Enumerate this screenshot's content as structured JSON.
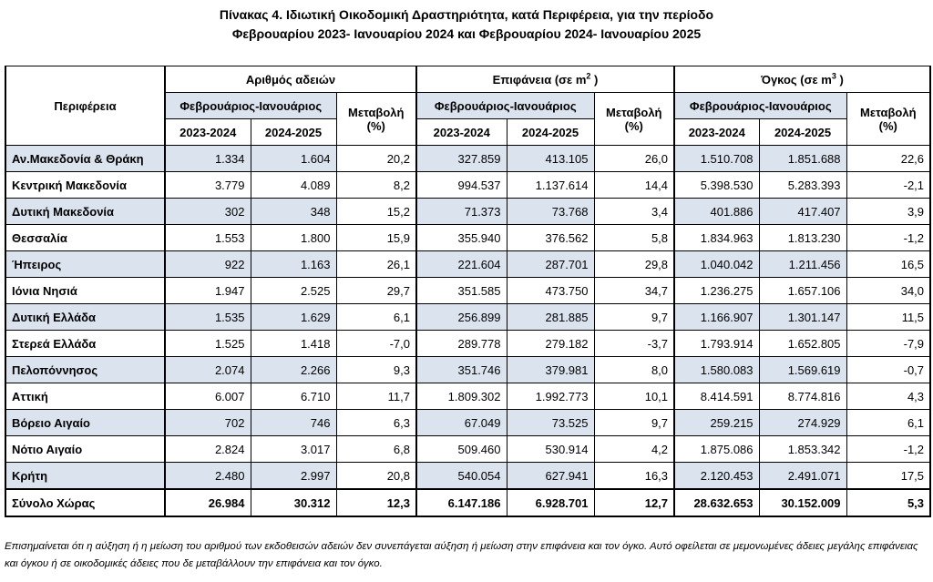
{
  "title": {
    "line1": "Πίνακας 4.  Ιδιωτική Οικοδομική Δραστηριότητα, κατά  Περιφέρεια, για την περίοδο",
    "line2": "Φεβρουαρίου 2023- Ιανουαρίου 2024 και Φεβρουαρίου 2024- Ιανουαρίου 2025"
  },
  "headers": {
    "region": "Περιφέρεια",
    "permits": "Αριθμός αδειών",
    "area": "Επιφάνεια (σε m",
    "area_sup": "2",
    "area_close": " )",
    "volume": "Όγκος (σε m",
    "volume_sup": "3",
    "volume_close": " )",
    "period": "Φεβρουάριος-Ιανουάριος",
    "change": "Μεταβολή",
    "percent": "(%)",
    "year1": "2023-2024",
    "year2": "2024-2025"
  },
  "rows": [
    {
      "region": "Αν.Μακεδονία & Θράκη",
      "p1": "1.334",
      "p2": "1.604",
      "pc": "20,2",
      "a1": "327.859",
      "a2": "413.105",
      "ac": "26,0",
      "v1": "1.510.708",
      "v2": "1.851.688",
      "vc": "22,6",
      "shaded": true
    },
    {
      "region": "Κεντρική Μακεδονία",
      "p1": "3.779",
      "p2": "4.089",
      "pc": "8,2",
      "a1": "994.537",
      "a2": "1.137.614",
      "ac": "14,4",
      "v1": "5.398.530",
      "v2": "5.283.393",
      "vc": "-2,1",
      "shaded": false
    },
    {
      "region": "Δυτική Μακεδονία",
      "p1": "302",
      "p2": "348",
      "pc": "15,2",
      "a1": "71.373",
      "a2": "73.768",
      "ac": "3,4",
      "v1": "401.886",
      "v2": "417.407",
      "vc": "3,9",
      "shaded": true
    },
    {
      "region": "Θεσσαλία",
      "p1": "1.553",
      "p2": "1.800",
      "pc": "15,9",
      "a1": "355.940",
      "a2": "376.562",
      "ac": "5,8",
      "v1": "1.834.963",
      "v2": "1.813.230",
      "vc": "-1,2",
      "shaded": false
    },
    {
      "region": "Ήπειρος",
      "p1": "922",
      "p2": "1.163",
      "pc": "26,1",
      "a1": "221.604",
      "a2": "287.701",
      "ac": "29,8",
      "v1": "1.040.042",
      "v2": "1.211.456",
      "vc": "16,5",
      "shaded": true
    },
    {
      "region": "Ιόνια Νησιά",
      "p1": "1.947",
      "p2": "2.525",
      "pc": "29,7",
      "a1": "351.585",
      "a2": "473.750",
      "ac": "34,7",
      "v1": "1.236.275",
      "v2": "1.657.106",
      "vc": "34,0",
      "shaded": false
    },
    {
      "region": "Δυτική Ελλάδα",
      "p1": "1.535",
      "p2": "1.629",
      "pc": "6,1",
      "a1": "256.899",
      "a2": "281.885",
      "ac": "9,7",
      "v1": "1.166.907",
      "v2": "1.301.147",
      "vc": "11,5",
      "shaded": true
    },
    {
      "region": "Στερεά Ελλάδα",
      "p1": "1.525",
      "p2": "1.418",
      "pc": "-7,0",
      "a1": "289.778",
      "a2": "279.182",
      "ac": "-3,7",
      "v1": "1.793.914",
      "v2": "1.652.805",
      "vc": "-7,9",
      "shaded": false
    },
    {
      "region": "Πελοπόννησος",
      "p1": "2.074",
      "p2": "2.266",
      "pc": "9,3",
      "a1": "351.746",
      "a2": "379.981",
      "ac": "8,0",
      "v1": "1.580.083",
      "v2": "1.569.619",
      "vc": "-0,7",
      "shaded": true
    },
    {
      "region": "Αττική",
      "p1": "6.007",
      "p2": "6.710",
      "pc": "11,7",
      "a1": "1.809.302",
      "a2": "1.992.773",
      "ac": "10,1",
      "v1": "8.414.591",
      "v2": "8.774.816",
      "vc": "4,3",
      "shaded": false
    },
    {
      "region": "Βόρειο Αιγαίο",
      "p1": "702",
      "p2": "746",
      "pc": "6,3",
      "a1": "67.049",
      "a2": "73.525",
      "ac": "9,7",
      "v1": "259.215",
      "v2": "274.929",
      "vc": "6,1",
      "shaded": true
    },
    {
      "region": "Νότιο Αιγαίο",
      "p1": "2.824",
      "p2": "3.017",
      "pc": "6,8",
      "a1": "509.460",
      "a2": "530.914",
      "ac": "4,2",
      "v1": "1.875.086",
      "v2": "1.853.342",
      "vc": "-1,2",
      "shaded": false
    },
    {
      "region": "Κρήτη",
      "p1": "2.480",
      "p2": "2.997",
      "pc": "20,8",
      "a1": "540.054",
      "a2": "627.941",
      "ac": "16,3",
      "v1": "2.120.453",
      "v2": "2.491.071",
      "vc": "17,5",
      "shaded": true
    }
  ],
  "total": {
    "region": "Σύνολο Χώρας",
    "p1": "26.984",
    "p2": "30.312",
    "pc": "12,3",
    "a1": "6.147.186",
    "a2": "6.928.701",
    "ac": "12,7",
    "v1": "28.632.653",
    "v2": "30.152.009",
    "vc": "5,3"
  },
  "note": "Επισημαίνεται ότι η αύξηση ή η μείωση του αριθμού των εκδοθεισών αδειών δεν συνεπάγεται αύξηση ή μείωση στην επιφάνεια και τον όγκο. Αυτό οφείλεται σε μεμονωμένες άδειες μεγάλης επιφάνειας και όγκου ή σε οικοδομικές άδειες που δε μεταβάλλουν την επιφάνεια και τον όγκο.",
  "colors": {
    "shade": "#dbe3ef",
    "border": "#000000"
  }
}
